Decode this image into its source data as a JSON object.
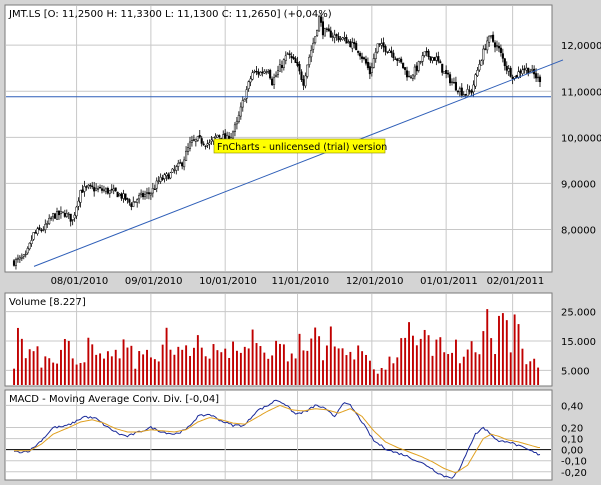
{
  "colors": {
    "background": "#d4d4d4",
    "plot": "#ffffff",
    "candle": "#000000",
    "trendline": "#2f5fb8",
    "volume": "#c00000",
    "macd_line": "#1a2a9a",
    "signal_line": "#e0a020",
    "watermark_bg": "#ffff00"
  },
  "watermark": "FnCharts - unlicensed (trial) version",
  "chart_data": [
    {
      "type": "candlestick",
      "title": "JMT.LS [O: 11,2500  H: 11,3300  L: 11,1300  C: 11,2650] (+0,04%)",
      "x_tick_labels": [
        "08/01/2010",
        "09/01/2010",
        "10/01/2010",
        "11/01/2010",
        "12/01/2010",
        "01/01/2011",
        "02/01/2011"
      ],
      "y_tick_labels": [
        "8,0000",
        "9,0000",
        "10,0000",
        "11,0000",
        "12,0000"
      ],
      "y_ticks": [
        8,
        9,
        10,
        11,
        12
      ],
      "ylim": [
        7.1,
        12.85
      ],
      "grid": true,
      "reference_lines": [
        {
          "type": "horizontal",
          "y": 10.88
        },
        {
          "type": "trendline",
          "points": [
            [
              7.2,
              0
            ],
            [
              11.68,
              1
            ]
          ]
        }
      ],
      "close_path": [
        [
          0,
          7.3
        ],
        [
          6,
          7.4
        ],
        [
          10,
          7.9
        ],
        [
          16,
          8.05
        ],
        [
          20,
          8.3
        ],
        [
          26,
          8.35
        ],
        [
          30,
          8.2
        ],
        [
          34,
          8.85
        ],
        [
          38,
          8.9
        ],
        [
          46,
          8.85
        ],
        [
          52,
          8.8
        ],
        [
          56,
          8.7
        ],
        [
          60,
          8.55
        ],
        [
          64,
          8.7
        ],
        [
          70,
          8.8
        ],
        [
          74,
          9.05
        ],
        [
          80,
          9.2
        ],
        [
          86,
          9.45
        ],
        [
          90,
          9.85
        ],
        [
          94,
          9.95
        ],
        [
          100,
          9.85
        ],
        [
          104,
          10.05
        ],
        [
          110,
          9.95
        ],
        [
          114,
          10.3
        ],
        [
          118,
          10.9
        ],
        [
          122,
          11.4
        ],
        [
          126,
          11.4
        ],
        [
          130,
          11.5
        ],
        [
          132,
          11.2
        ],
        [
          136,
          11.5
        ],
        [
          140,
          11.8
        ],
        [
          144,
          11.6
        ],
        [
          148,
          11.2
        ],
        [
          150,
          11.6
        ],
        [
          154,
          12.2
        ],
        [
          156,
          12.6
        ],
        [
          158,
          12.3
        ],
        [
          164,
          12.2
        ],
        [
          170,
          12.1
        ],
        [
          176,
          11.9
        ],
        [
          180,
          11.6
        ],
        [
          182,
          11.4
        ],
        [
          186,
          12.0
        ],
        [
          192,
          11.9
        ],
        [
          198,
          11.6
        ],
        [
          202,
          11.3
        ],
        [
          206,
          11.5
        ],
        [
          210,
          11.8
        ],
        [
          216,
          11.7
        ],
        [
          220,
          11.4
        ],
        [
          226,
          11.1
        ],
        [
          230,
          10.95
        ],
        [
          234,
          11.0
        ],
        [
          238,
          11.6
        ],
        [
          242,
          12.1
        ],
        [
          244,
          12.15
        ],
        [
          248,
          11.9
        ],
        [
          252,
          11.5
        ],
        [
          256,
          11.3
        ],
        [
          260,
          11.5
        ],
        [
          264,
          11.45
        ],
        [
          268,
          11.27
        ]
      ]
    },
    {
      "type": "bar",
      "title": "Volume [8.227]",
      "y_tick_labels": [
        "5.000",
        "15.000",
        "25.000"
      ],
      "y_ticks": [
        5000,
        15000,
        25000
      ],
      "ylim": [
        0,
        31000
      ],
      "grid": true,
      "volume_path": [
        [
          0,
          7000
        ],
        [
          3,
          22000
        ],
        [
          6,
          9000
        ],
        [
          10,
          16000
        ],
        [
          14,
          8000
        ],
        [
          18,
          12000
        ],
        [
          22,
          9000
        ],
        [
          26,
          14000
        ],
        [
          30,
          11000
        ],
        [
          34,
          8000
        ],
        [
          38,
          13000
        ],
        [
          42,
          10000
        ],
        [
          46,
          7000
        ],
        [
          50,
          12000
        ],
        [
          54,
          9000
        ],
        [
          58,
          15000
        ],
        [
          62,
          7000
        ],
        [
          66,
          11000
        ],
        [
          70,
          13000
        ],
        [
          74,
          8000
        ],
        [
          78,
          16000
        ],
        [
          82,
          10000
        ],
        [
          86,
          12000
        ],
        [
          90,
          9000
        ],
        [
          94,
          17000
        ],
        [
          98,
          11000
        ],
        [
          102,
          14000
        ],
        [
          106,
          12000
        ],
        [
          110,
          9000
        ],
        [
          114,
          15000
        ],
        [
          118,
          11000
        ],
        [
          122,
          18000
        ],
        [
          126,
          12000
        ],
        [
          130,
          10000
        ],
        [
          134,
          16000
        ],
        [
          138,
          12000
        ],
        [
          142,
          9000
        ],
        [
          146,
          14000
        ],
        [
          150,
          11000
        ],
        [
          154,
          20000
        ],
        [
          158,
          12000
        ],
        [
          162,
          16000
        ],
        [
          166,
          11000
        ],
        [
          170,
          14000
        ],
        [
          174,
          9000
        ],
        [
          178,
          12000
        ],
        [
          182,
          10000
        ],
        [
          186,
          4000
        ],
        [
          190,
          6000
        ],
        [
          194,
          9000
        ],
        [
          198,
          13000
        ],
        [
          202,
          17000
        ],
        [
          206,
          11000
        ],
        [
          210,
          22000
        ],
        [
          214,
          12000
        ],
        [
          218,
          15000
        ],
        [
          222,
          9000
        ],
        [
          226,
          12000
        ],
        [
          230,
          8000
        ],
        [
          234,
          14000
        ],
        [
          238,
          11000
        ],
        [
          242,
          20000
        ],
        [
          246,
          10000
        ],
        [
          250,
          30000
        ],
        [
          254,
          12000
        ],
        [
          257,
          23000
        ],
        [
          260,
          10000
        ],
        [
          264,
          7000
        ],
        [
          268,
          8000
        ]
      ]
    },
    {
      "type": "line",
      "title": "MACD - Moving Average Conv. Div. [-0,04]",
      "y_tick_labels": [
        "-0,20",
        "-0,10",
        "0,00",
        "0,10",
        "0,20",
        "0,40"
      ],
      "y_ticks": [
        -0.2,
        -0.1,
        0,
        0.1,
        0.2,
        0.4
      ],
      "ylim": [
        -0.265,
        0.53
      ],
      "zero_line": true,
      "series": [
        {
          "values_path": [
            [
              0,
              -0.02
            ],
            [
              4,
              -0.02
            ],
            [
              8,
              -0.01
            ],
            [
              12,
              0.05
            ],
            [
              16,
              0.12
            ],
            [
              20,
              0.2
            ],
            [
              26,
              0.21
            ],
            [
              30,
              0.24
            ],
            [
              36,
              0.3
            ],
            [
              42,
              0.28
            ],
            [
              48,
              0.2
            ],
            [
              54,
              0.14
            ],
            [
              58,
              0.12
            ],
            [
              64,
              0.16
            ],
            [
              70,
              0.2
            ],
            [
              76,
              0.16
            ],
            [
              82,
              0.14
            ],
            [
              88,
              0.18
            ],
            [
              94,
              0.3
            ],
            [
              100,
              0.32
            ],
            [
              106,
              0.26
            ],
            [
              112,
              0.22
            ],
            [
              118,
              0.22
            ],
            [
              124,
              0.35
            ],
            [
              130,
              0.4
            ],
            [
              134,
              0.45
            ],
            [
              138,
              0.42
            ],
            [
              144,
              0.32
            ],
            [
              150,
              0.35
            ],
            [
              154,
              0.4
            ],
            [
              158,
              0.38
            ],
            [
              164,
              0.3
            ],
            [
              168,
              0.42
            ],
            [
              172,
              0.4
            ],
            [
              178,
              0.25
            ],
            [
              184,
              0.08
            ],
            [
              190,
              0.01
            ],
            [
              194,
              -0.02
            ],
            [
              200,
              -0.05
            ],
            [
              206,
              -0.1
            ],
            [
              212,
              -0.15
            ],
            [
              216,
              -0.2
            ],
            [
              220,
              -0.24
            ],
            [
              224,
              -0.25
            ],
            [
              228,
              -0.18
            ],
            [
              232,
              0.0
            ],
            [
              236,
              0.14
            ],
            [
              240,
              0.2
            ],
            [
              244,
              0.14
            ],
            [
              248,
              0.07
            ],
            [
              252,
              0.08
            ],
            [
              256,
              0.05
            ],
            [
              260,
              0.02
            ],
            [
              264,
              -0.01
            ],
            [
              268,
              -0.04
            ]
          ]
        },
        {
          "values_path": [
            [
              0,
              -0.01
            ],
            [
              8,
              -0.01
            ],
            [
              14,
              0.05
            ],
            [
              20,
              0.14
            ],
            [
              28,
              0.2
            ],
            [
              34,
              0.25
            ],
            [
              40,
              0.27
            ],
            [
              46,
              0.24
            ],
            [
              52,
              0.19
            ],
            [
              58,
              0.16
            ],
            [
              64,
              0.16
            ],
            [
              70,
              0.18
            ],
            [
              76,
              0.17
            ],
            [
              82,
              0.16
            ],
            [
              88,
              0.18
            ],
            [
              94,
              0.25
            ],
            [
              100,
              0.29
            ],
            [
              106,
              0.27
            ],
            [
              112,
              0.24
            ],
            [
              118,
              0.23
            ],
            [
              124,
              0.29
            ],
            [
              130,
              0.35
            ],
            [
              136,
              0.4
            ],
            [
              142,
              0.36
            ],
            [
              148,
              0.35
            ],
            [
              154,
              0.37
            ],
            [
              160,
              0.36
            ],
            [
              166,
              0.33
            ],
            [
              172,
              0.37
            ],
            [
              178,
              0.3
            ],
            [
              184,
              0.17
            ],
            [
              190,
              0.07
            ],
            [
              196,
              0.02
            ],
            [
              202,
              -0.02
            ],
            [
              208,
              -0.06
            ],
            [
              214,
              -0.11
            ],
            [
              220,
              -0.17
            ],
            [
              226,
              -0.21
            ],
            [
              232,
              -0.14
            ],
            [
              236,
              -0.02
            ],
            [
              240,
              0.1
            ],
            [
              244,
              0.14
            ],
            [
              248,
              0.12
            ],
            [
              252,
              0.09
            ],
            [
              258,
              0.07
            ],
            [
              264,
              0.04
            ],
            [
              268,
              0.02
            ]
          ]
        }
      ]
    }
  ]
}
